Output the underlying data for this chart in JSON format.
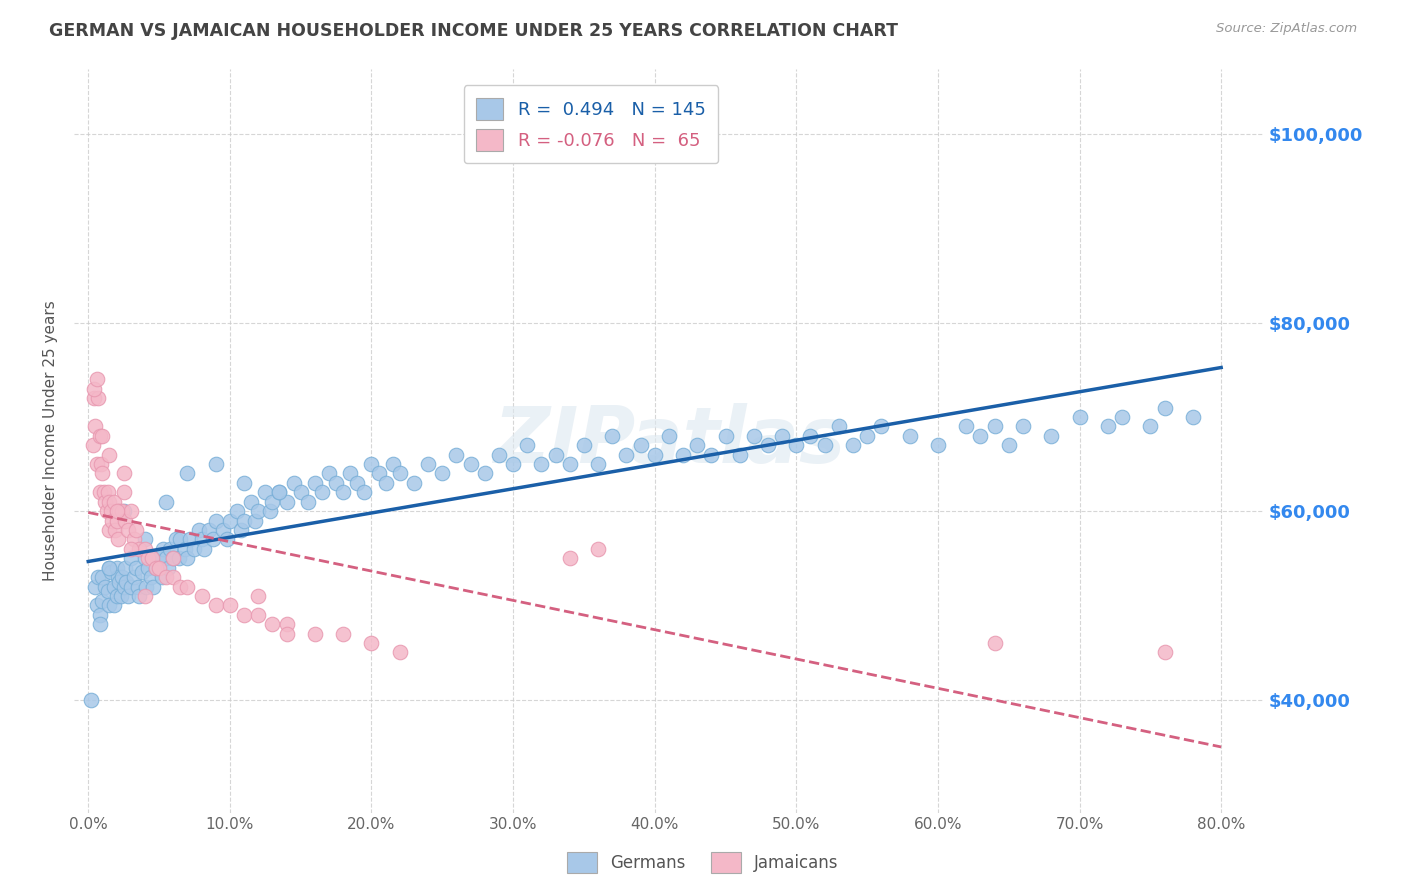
{
  "title": "GERMAN VS JAMAICAN HOUSEHOLDER INCOME UNDER 25 YEARS CORRELATION CHART",
  "source": "Source: ZipAtlas.com",
  "ylabel": "Householder Income Under 25 years",
  "xlabel_ticks": [
    "0.0%",
    "10.0%",
    "20.0%",
    "30.0%",
    "40.0%",
    "50.0%",
    "60.0%",
    "70.0%",
    "80.0%"
  ],
  "xtick_positions": [
    0.0,
    0.1,
    0.2,
    0.3,
    0.4,
    0.5,
    0.6,
    0.7,
    0.8
  ],
  "ytick_labels": [
    "$40,000",
    "$60,000",
    "$80,000",
    "$100,000"
  ],
  "ytick_values": [
    40000,
    60000,
    80000,
    100000
  ],
  "xlim": [
    -0.01,
    0.83
  ],
  "ylim": [
    28000,
    107000
  ],
  "watermark": "ZIPatlas",
  "legend_blue_r": "0.494",
  "legend_blue_n": "145",
  "legend_pink_r": "-0.076",
  "legend_pink_n": "65",
  "blue_color": "#a8c8e8",
  "pink_color": "#f4b8c8",
  "blue_line_color": "#1a5fa8",
  "pink_line_color": "#d46080",
  "title_color": "#444444",
  "axis_label_color": "#555555",
  "right_tick_color": "#3388ee",
  "background_color": "#ffffff",
  "grid_color": "#cccccc",
  "blue_scatter_x": [
    0.005,
    0.006,
    0.007,
    0.008,
    0.01,
    0.01,
    0.012,
    0.014,
    0.015,
    0.015,
    0.016,
    0.018,
    0.018,
    0.02,
    0.02,
    0.021,
    0.022,
    0.023,
    0.024,
    0.025,
    0.026,
    0.027,
    0.028,
    0.03,
    0.03,
    0.032,
    0.034,
    0.035,
    0.036,
    0.038,
    0.04,
    0.041,
    0.042,
    0.044,
    0.045,
    0.046,
    0.048,
    0.05,
    0.052,
    0.053,
    0.055,
    0.056,
    0.058,
    0.06,
    0.062,
    0.064,
    0.065,
    0.068,
    0.07,
    0.072,
    0.075,
    0.078,
    0.08,
    0.082,
    0.085,
    0.088,
    0.09,
    0.095,
    0.098,
    0.1,
    0.105,
    0.108,
    0.11,
    0.115,
    0.118,
    0.12,
    0.125,
    0.128,
    0.13,
    0.135,
    0.14,
    0.145,
    0.15,
    0.155,
    0.16,
    0.165,
    0.17,
    0.175,
    0.18,
    0.185,
    0.19,
    0.195,
    0.2,
    0.205,
    0.21,
    0.215,
    0.22,
    0.23,
    0.24,
    0.25,
    0.26,
    0.27,
    0.28,
    0.29,
    0.3,
    0.31,
    0.32,
    0.33,
    0.34,
    0.35,
    0.36,
    0.37,
    0.38,
    0.39,
    0.4,
    0.41,
    0.42,
    0.43,
    0.44,
    0.45,
    0.46,
    0.47,
    0.48,
    0.49,
    0.5,
    0.51,
    0.52,
    0.53,
    0.54,
    0.55,
    0.56,
    0.58,
    0.6,
    0.62,
    0.63,
    0.64,
    0.65,
    0.66,
    0.68,
    0.7,
    0.72,
    0.73,
    0.75,
    0.76,
    0.78,
    0.002,
    0.008,
    0.015,
    0.025,
    0.04,
    0.055,
    0.07,
    0.09,
    0.11,
    0.135
  ],
  "blue_scatter_y": [
    52000,
    50000,
    53000,
    49000,
    53000,
    50500,
    52000,
    51500,
    54000,
    50000,
    53500,
    52000,
    50000,
    54000,
    51000,
    53000,
    52500,
    51000,
    53000,
    52000,
    54000,
    52500,
    51000,
    55000,
    52000,
    53000,
    54000,
    52000,
    51000,
    53500,
    55000,
    52000,
    54000,
    53000,
    55000,
    52000,
    54000,
    55000,
    53000,
    56000,
    55000,
    54000,
    56000,
    55000,
    57000,
    55000,
    57000,
    56000,
    55000,
    57000,
    56000,
    58000,
    57000,
    56000,
    58000,
    57000,
    59000,
    58000,
    57000,
    59000,
    60000,
    58000,
    59000,
    61000,
    59000,
    60000,
    62000,
    60000,
    61000,
    62000,
    61000,
    63000,
    62000,
    61000,
    63000,
    62000,
    64000,
    63000,
    62000,
    64000,
    63000,
    62000,
    65000,
    64000,
    63000,
    65000,
    64000,
    63000,
    65000,
    64000,
    66000,
    65000,
    64000,
    66000,
    65000,
    67000,
    65000,
    66000,
    65000,
    67000,
    65000,
    68000,
    66000,
    67000,
    66000,
    68000,
    66000,
    67000,
    66000,
    68000,
    66000,
    68000,
    67000,
    68000,
    67000,
    68000,
    67000,
    69000,
    67000,
    68000,
    69000,
    68000,
    67000,
    69000,
    68000,
    69000,
    67000,
    69000,
    68000,
    70000,
    69000,
    70000,
    69000,
    71000,
    70000,
    40000,
    48000,
    54000,
    60000,
    57000,
    61000,
    64000,
    65000,
    63000,
    62000
  ],
  "pink_scatter_x": [
    0.003,
    0.004,
    0.005,
    0.006,
    0.007,
    0.008,
    0.008,
    0.009,
    0.01,
    0.011,
    0.012,
    0.013,
    0.014,
    0.015,
    0.015,
    0.016,
    0.017,
    0.018,
    0.019,
    0.02,
    0.021,
    0.022,
    0.024,
    0.025,
    0.026,
    0.028,
    0.03,
    0.032,
    0.034,
    0.036,
    0.04,
    0.042,
    0.045,
    0.048,
    0.05,
    0.055,
    0.06,
    0.065,
    0.07,
    0.08,
    0.09,
    0.1,
    0.11,
    0.12,
    0.13,
    0.14,
    0.16,
    0.18,
    0.2,
    0.22,
    0.004,
    0.006,
    0.01,
    0.015,
    0.02,
    0.025,
    0.03,
    0.04,
    0.06,
    0.12,
    0.14,
    0.34,
    0.36,
    0.64,
    0.76
  ],
  "pink_scatter_y": [
    67000,
    72000,
    69000,
    65000,
    72000,
    68000,
    62000,
    65000,
    64000,
    62000,
    61000,
    60000,
    62000,
    61000,
    58000,
    60000,
    59000,
    61000,
    58000,
    59000,
    57000,
    60000,
    60000,
    62000,
    59000,
    58000,
    60000,
    57000,
    58000,
    56000,
    56000,
    55000,
    55000,
    54000,
    54000,
    53000,
    53000,
    52000,
    52000,
    51000,
    50000,
    50000,
    49000,
    49000,
    48000,
    48000,
    47000,
    47000,
    46000,
    45000,
    73000,
    74000,
    68000,
    66000,
    60000,
    64000,
    56000,
    51000,
    55000,
    51000,
    47000,
    55000,
    56000,
    46000,
    45000
  ]
}
